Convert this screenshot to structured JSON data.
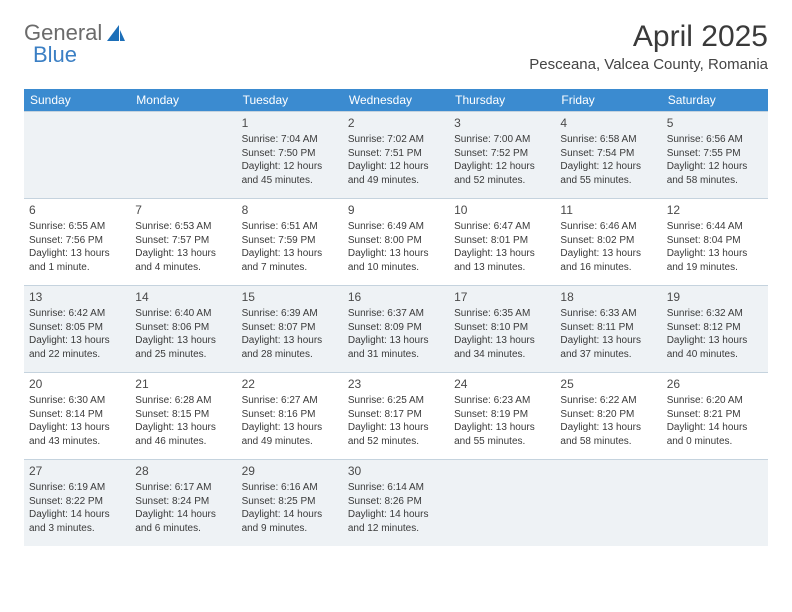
{
  "logo": {
    "text1": "General",
    "text2": "Blue",
    "accent": "#1d6fb8"
  },
  "title": "April 2025",
  "location": "Pesceana, Valcea County, Romania",
  "colors": {
    "header_bg": "#3b8bd0",
    "header_text": "#ffffff",
    "shaded_bg": "#eef2f5",
    "border": "#c5d3de"
  },
  "dow": [
    "Sunday",
    "Monday",
    "Tuesday",
    "Wednesday",
    "Thursday",
    "Friday",
    "Saturday"
  ],
  "weeks": [
    [
      {
        "num": "",
        "sunrise": "",
        "sunset": "",
        "daylight": "",
        "shaded": true
      },
      {
        "num": "",
        "sunrise": "",
        "sunset": "",
        "daylight": "",
        "shaded": true
      },
      {
        "num": "1",
        "sunrise": "Sunrise: 7:04 AM",
        "sunset": "Sunset: 7:50 PM",
        "daylight": "Daylight: 12 hours and 45 minutes.",
        "shaded": true
      },
      {
        "num": "2",
        "sunrise": "Sunrise: 7:02 AM",
        "sunset": "Sunset: 7:51 PM",
        "daylight": "Daylight: 12 hours and 49 minutes.",
        "shaded": true
      },
      {
        "num": "3",
        "sunrise": "Sunrise: 7:00 AM",
        "sunset": "Sunset: 7:52 PM",
        "daylight": "Daylight: 12 hours and 52 minutes.",
        "shaded": true
      },
      {
        "num": "4",
        "sunrise": "Sunrise: 6:58 AM",
        "sunset": "Sunset: 7:54 PM",
        "daylight": "Daylight: 12 hours and 55 minutes.",
        "shaded": true
      },
      {
        "num": "5",
        "sunrise": "Sunrise: 6:56 AM",
        "sunset": "Sunset: 7:55 PM",
        "daylight": "Daylight: 12 hours and 58 minutes.",
        "shaded": true
      }
    ],
    [
      {
        "num": "6",
        "sunrise": "Sunrise: 6:55 AM",
        "sunset": "Sunset: 7:56 PM",
        "daylight": "Daylight: 13 hours and 1 minute.",
        "shaded": false
      },
      {
        "num": "7",
        "sunrise": "Sunrise: 6:53 AM",
        "sunset": "Sunset: 7:57 PM",
        "daylight": "Daylight: 13 hours and 4 minutes.",
        "shaded": false
      },
      {
        "num": "8",
        "sunrise": "Sunrise: 6:51 AM",
        "sunset": "Sunset: 7:59 PM",
        "daylight": "Daylight: 13 hours and 7 minutes.",
        "shaded": false
      },
      {
        "num": "9",
        "sunrise": "Sunrise: 6:49 AM",
        "sunset": "Sunset: 8:00 PM",
        "daylight": "Daylight: 13 hours and 10 minutes.",
        "shaded": false
      },
      {
        "num": "10",
        "sunrise": "Sunrise: 6:47 AM",
        "sunset": "Sunset: 8:01 PM",
        "daylight": "Daylight: 13 hours and 13 minutes.",
        "shaded": false
      },
      {
        "num": "11",
        "sunrise": "Sunrise: 6:46 AM",
        "sunset": "Sunset: 8:02 PM",
        "daylight": "Daylight: 13 hours and 16 minutes.",
        "shaded": false
      },
      {
        "num": "12",
        "sunrise": "Sunrise: 6:44 AM",
        "sunset": "Sunset: 8:04 PM",
        "daylight": "Daylight: 13 hours and 19 minutes.",
        "shaded": false
      }
    ],
    [
      {
        "num": "13",
        "sunrise": "Sunrise: 6:42 AM",
        "sunset": "Sunset: 8:05 PM",
        "daylight": "Daylight: 13 hours and 22 minutes.",
        "shaded": true
      },
      {
        "num": "14",
        "sunrise": "Sunrise: 6:40 AM",
        "sunset": "Sunset: 8:06 PM",
        "daylight": "Daylight: 13 hours and 25 minutes.",
        "shaded": true
      },
      {
        "num": "15",
        "sunrise": "Sunrise: 6:39 AM",
        "sunset": "Sunset: 8:07 PM",
        "daylight": "Daylight: 13 hours and 28 minutes.",
        "shaded": true
      },
      {
        "num": "16",
        "sunrise": "Sunrise: 6:37 AM",
        "sunset": "Sunset: 8:09 PM",
        "daylight": "Daylight: 13 hours and 31 minutes.",
        "shaded": true
      },
      {
        "num": "17",
        "sunrise": "Sunrise: 6:35 AM",
        "sunset": "Sunset: 8:10 PM",
        "daylight": "Daylight: 13 hours and 34 minutes.",
        "shaded": true
      },
      {
        "num": "18",
        "sunrise": "Sunrise: 6:33 AM",
        "sunset": "Sunset: 8:11 PM",
        "daylight": "Daylight: 13 hours and 37 minutes.",
        "shaded": true
      },
      {
        "num": "19",
        "sunrise": "Sunrise: 6:32 AM",
        "sunset": "Sunset: 8:12 PM",
        "daylight": "Daylight: 13 hours and 40 minutes.",
        "shaded": true
      }
    ],
    [
      {
        "num": "20",
        "sunrise": "Sunrise: 6:30 AM",
        "sunset": "Sunset: 8:14 PM",
        "daylight": "Daylight: 13 hours and 43 minutes.",
        "shaded": false
      },
      {
        "num": "21",
        "sunrise": "Sunrise: 6:28 AM",
        "sunset": "Sunset: 8:15 PM",
        "daylight": "Daylight: 13 hours and 46 minutes.",
        "shaded": false
      },
      {
        "num": "22",
        "sunrise": "Sunrise: 6:27 AM",
        "sunset": "Sunset: 8:16 PM",
        "daylight": "Daylight: 13 hours and 49 minutes.",
        "shaded": false
      },
      {
        "num": "23",
        "sunrise": "Sunrise: 6:25 AM",
        "sunset": "Sunset: 8:17 PM",
        "daylight": "Daylight: 13 hours and 52 minutes.",
        "shaded": false
      },
      {
        "num": "24",
        "sunrise": "Sunrise: 6:23 AM",
        "sunset": "Sunset: 8:19 PM",
        "daylight": "Daylight: 13 hours and 55 minutes.",
        "shaded": false
      },
      {
        "num": "25",
        "sunrise": "Sunrise: 6:22 AM",
        "sunset": "Sunset: 8:20 PM",
        "daylight": "Daylight: 13 hours and 58 minutes.",
        "shaded": false
      },
      {
        "num": "26",
        "sunrise": "Sunrise: 6:20 AM",
        "sunset": "Sunset: 8:21 PM",
        "daylight": "Daylight: 14 hours and 0 minutes.",
        "shaded": false
      }
    ],
    [
      {
        "num": "27",
        "sunrise": "Sunrise: 6:19 AM",
        "sunset": "Sunset: 8:22 PM",
        "daylight": "Daylight: 14 hours and 3 minutes.",
        "shaded": true
      },
      {
        "num": "28",
        "sunrise": "Sunrise: 6:17 AM",
        "sunset": "Sunset: 8:24 PM",
        "daylight": "Daylight: 14 hours and 6 minutes.",
        "shaded": true
      },
      {
        "num": "29",
        "sunrise": "Sunrise: 6:16 AM",
        "sunset": "Sunset: 8:25 PM",
        "daylight": "Daylight: 14 hours and 9 minutes.",
        "shaded": true
      },
      {
        "num": "30",
        "sunrise": "Sunrise: 6:14 AM",
        "sunset": "Sunset: 8:26 PM",
        "daylight": "Daylight: 14 hours and 12 minutes.",
        "shaded": true
      },
      {
        "num": "",
        "sunrise": "",
        "sunset": "",
        "daylight": "",
        "shaded": true
      },
      {
        "num": "",
        "sunrise": "",
        "sunset": "",
        "daylight": "",
        "shaded": true
      },
      {
        "num": "",
        "sunrise": "",
        "sunset": "",
        "daylight": "",
        "shaded": true
      }
    ]
  ]
}
